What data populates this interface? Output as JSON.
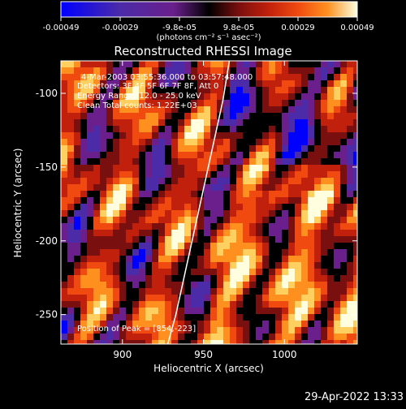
{
  "colorbar": {
    "ticks": [
      "-0.00049",
      "-0.00029",
      "-9.8e-05",
      "9.8e-05",
      "0.00029",
      "0.00049"
    ],
    "units": "(photons cm⁻² s⁻¹ asec⁻²)"
  },
  "title": "Reconstructed RHESSI Image",
  "annotations": {
    "time_range": "4-Mar-2003 03:55:36.000 to 03:57:48.000",
    "detectors": "Detectors: 3F 4F 5F 6F 7F 8F, Att 0",
    "energy_range": "Energy Range: 12.0 - 25.0 keV",
    "clean": "Clean    Total counts: 1.22E+03",
    "peak": "Position of Peak = [854,-223]"
  },
  "footer_timestamp": "29-Apr-2022 13:33",
  "colors": {
    "background": "#000000",
    "colormap": [
      "#0000ff",
      "#4b2ba8",
      "#6a1f8c",
      "#000000",
      "#7a0f0f",
      "#c0200c",
      "#f04a10",
      "#ff9020",
      "#ffd060",
      "#ffffe0"
    ]
  },
  "chart_data": {
    "type": "heatmap",
    "title": "Reconstructed RHESSI Image",
    "xlabel": "Heliocentric X (arcsec)",
    "ylabel": "Heliocentric Y (arcsec)",
    "xlim": [
      862,
      1045
    ],
    "ylim": [
      -270,
      -78
    ],
    "xticks": [
      900,
      950,
      1000
    ],
    "yticks": [
      -100,
      -150,
      -200,
      -250
    ],
    "colorbar_range": [
      -0.00049,
      0.00049
    ],
    "limb_curve": {
      "x": [
        966,
        962,
        956,
        950,
        944,
        938,
        933,
        928
      ],
      "y": [
        -78,
        -105,
        -135,
        -165,
        -195,
        -225,
        -250,
        -270
      ]
    },
    "peak": [
      854,
      -223
    ]
  }
}
